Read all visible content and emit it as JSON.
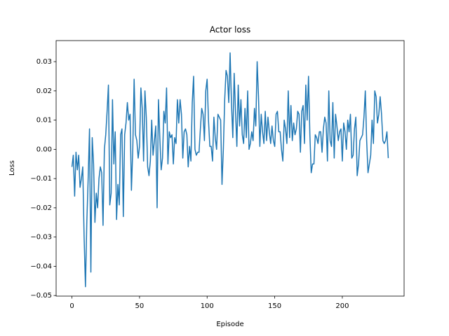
{
  "chart_data": {
    "type": "line",
    "title": "Actor loss",
    "x_label": "Episode",
    "y_label": "Loss",
    "color": "#1f77b4",
    "x": [
      0,
      1,
      2,
      3,
      4,
      5,
      6,
      7,
      8,
      9,
      10,
      11,
      12,
      13,
      14,
      15,
      16,
      17,
      18,
      19,
      20,
      21,
      22,
      23,
      24,
      25,
      26,
      27,
      28,
      29,
      30,
      31,
      32,
      33,
      34,
      35,
      36,
      37,
      38,
      39,
      40,
      41,
      42,
      43,
      44,
      45,
      46,
      47,
      48,
      49,
      50,
      51,
      52,
      53,
      54,
      55,
      56,
      57,
      58,
      59,
      60,
      61,
      62,
      63,
      64,
      65,
      66,
      67,
      68,
      69,
      70,
      71,
      72,
      73,
      74,
      75,
      76,
      77,
      78,
      79,
      80,
      81,
      82,
      83,
      84,
      85,
      86,
      87,
      88,
      89,
      90,
      91,
      92,
      93,
      94,
      95,
      96,
      97,
      98,
      99,
      100,
      101,
      102,
      103,
      104,
      105,
      106,
      107,
      108,
      109,
      110,
      111,
      112,
      113,
      114,
      115,
      116,
      117,
      118,
      119,
      120,
      121,
      122,
      123,
      124,
      125,
      126,
      127,
      128,
      129,
      130,
      131,
      132,
      133,
      134,
      135,
      136,
      137,
      138,
      139,
      140,
      141,
      142,
      143,
      144,
      145,
      146,
      147,
      148,
      149,
      150,
      151,
      152,
      153,
      154,
      155,
      156,
      157,
      158,
      159,
      160,
      161,
      162,
      163,
      164,
      165,
      166,
      167,
      168,
      169,
      170,
      171,
      172,
      173,
      174,
      175,
      176,
      177,
      178,
      179,
      180,
      181,
      182,
      183,
      184,
      185,
      186,
      187,
      188,
      189,
      190,
      191,
      192,
      193,
      194,
      195,
      196,
      197,
      198,
      199,
      200,
      201,
      202,
      203,
      204,
      205,
      206,
      207,
      208,
      209,
      210,
      211,
      212,
      213,
      214,
      215,
      216,
      217,
      218,
      219,
      220,
      221,
      222,
      223,
      224,
      225,
      226,
      227,
      228,
      229,
      230,
      231,
      232,
      233,
      234
    ],
    "values": [
      -0.006,
      -0.002,
      -0.016,
      -0.001,
      -0.007,
      -0.002,
      -0.013,
      -0.01,
      -0.006,
      -0.03,
      -0.047,
      -0.025,
      -0.01,
      0.007,
      -0.042,
      0.004,
      -0.005,
      -0.025,
      -0.015,
      -0.02,
      -0.01,
      -0.006,
      -0.008,
      -0.026,
      0.0,
      0.005,
      0.013,
      0.022,
      -0.019,
      -0.015,
      0.017,
      -0.005,
      0.006,
      -0.024,
      -0.012,
      -0.019,
      0.005,
      0.007,
      -0.023,
      0.005,
      0.009,
      0.016,
      0.01,
      0.012,
      -0.014,
      0.0,
      0.024,
      0.005,
      0.003,
      -0.003,
      0.001,
      0.021,
      0.014,
      -0.004,
      0.02,
      0.011,
      -0.006,
      -0.009,
      -0.004,
      0.01,
      -0.002,
      0.003,
      0.008,
      -0.02,
      0.017,
      0.004,
      -0.007,
      -0.003,
      0.013,
      0.009,
      0.021,
      -0.005,
      0.006,
      0.004,
      0.005,
      -0.005,
      0.004,
      0.002,
      0.017,
      0.009,
      0.017,
      0.012,
      -0.003,
      0.006,
      0.007,
      0.005,
      -0.006,
      0.001,
      -0.004,
      0.016,
      0.025,
      0.0,
      -0.002,
      -0.001,
      -0.001,
      0.007,
      0.014,
      0.012,
      0.003,
      0.02,
      0.024,
      0.01,
      0.001,
      0.001,
      -0.004,
      0.011,
      0.004,
      0.0,
      0.012,
      0.011,
      0.01,
      -0.012,
      0.0,
      0.017,
      0.027,
      0.025,
      0.016,
      0.033,
      0.016,
      0.004,
      0.026,
      0.013,
      0.001,
      0.022,
      0.008,
      0.017,
      0.005,
      0.002,
      0.014,
      0.004,
      0.02,
      0.0,
      0.002,
      0.006,
      0.003,
      0.014,
      0.008,
      0.03,
      0.018,
      0.001,
      0.012,
      0.006,
      0.002,
      0.013,
      0.003,
      0.011,
      0.006,
      0.002,
      0.008,
      0.003,
      0.001,
      0.012,
      0.013,
      0.006,
      0.006,
      0.0,
      -0.004,
      0.01,
      0.007,
      0.002,
      0.02,
      0.004,
      0.015,
      0.003,
      0.009,
      0.005,
      0.007,
      0.013,
      0.012,
      -0.001,
      0.013,
      0.015,
      0.002,
      0.022,
      0.01,
      0.025,
      0.005,
      -0.008,
      -0.005,
      -0.005,
      0.005,
      0.004,
      0.002,
      0.006,
      0.006,
      -0.001,
      0.007,
      0.011,
      0.009,
      -0.004,
      0.02,
      0.003,
      0.001,
      0.016,
      -0.003,
      0.012,
      0.008,
      0.003,
      0.006,
      0.007,
      -0.004,
      0.009,
      0.006,
      0.0,
      0.01,
      0.006,
      0.012,
      -0.003,
      -0.002,
      0.007,
      0.011,
      -0.009,
      -0.005,
      0.003,
      0.004,
      0.005,
      0.011,
      0.02,
      0.003,
      -0.008,
      -0.005,
      -0.002,
      0.01,
      0.002,
      0.02,
      0.018,
      0.009,
      0.012,
      0.018,
      0.012,
      0.003,
      0.002,
      0.003,
      0.006,
      -0.003
    ],
    "xlim": [
      -11.7,
      245.7
    ],
    "ylim": [
      -0.0502,
      0.0372
    ],
    "xticks": [
      0,
      50,
      100,
      150,
      200
    ],
    "yticks": [
      {
        "value": -0.05,
        "label": "−0.05"
      },
      {
        "value": -0.04,
        "label": "−0.04"
      },
      {
        "value": -0.03,
        "label": "−0.03"
      },
      {
        "value": -0.02,
        "label": "−0.02"
      },
      {
        "value": -0.01,
        "label": "−0.01"
      },
      {
        "value": 0,
        "label": "0.00"
      },
      {
        "value": 0.01,
        "label": "0.01"
      },
      {
        "value": 0.02,
        "label": "0.02"
      },
      {
        "value": 0.03,
        "label": "0.03"
      }
    ],
    "grid": false
  }
}
